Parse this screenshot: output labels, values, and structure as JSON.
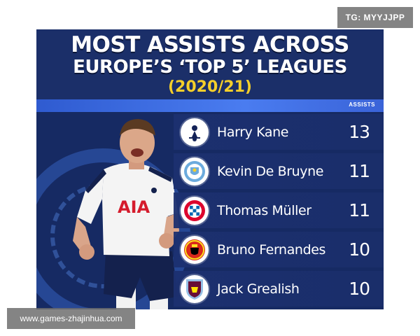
{
  "watermarks": {
    "top_right": "TG: MYYJJPP",
    "bottom_left": "www.games-zhajinhua.com"
  },
  "header": {
    "title_line1": "MOST ASSISTS ACROSS",
    "title_line2": "EUROPE’S ‘TOP 5’ LEAGUES",
    "season": "(2020/21)"
  },
  "table": {
    "column_header": "ASSISTS",
    "rows": [
      {
        "player": "Harry Kane",
        "assists": "13",
        "club_icon": "tottenham-crest-icon"
      },
      {
        "player": "Kevin De Bruyne",
        "assists": "11",
        "club_icon": "man-city-crest-icon"
      },
      {
        "player": "Thomas Müller",
        "assists": "11",
        "club_icon": "bayern-crest-icon"
      },
      {
        "player": "Bruno Fernandes",
        "assists": "10",
        "club_icon": "man-united-crest-icon"
      },
      {
        "player": "Jack Grealish",
        "assists": "10",
        "club_icon": "aston-villa-crest-icon"
      }
    ]
  },
  "shirt": {
    "sponsor": "AIA"
  },
  "colors": {
    "background": "#162a63",
    "accent_yellow": "#f5cf2a",
    "divider_blue": "#4a7cf0"
  }
}
